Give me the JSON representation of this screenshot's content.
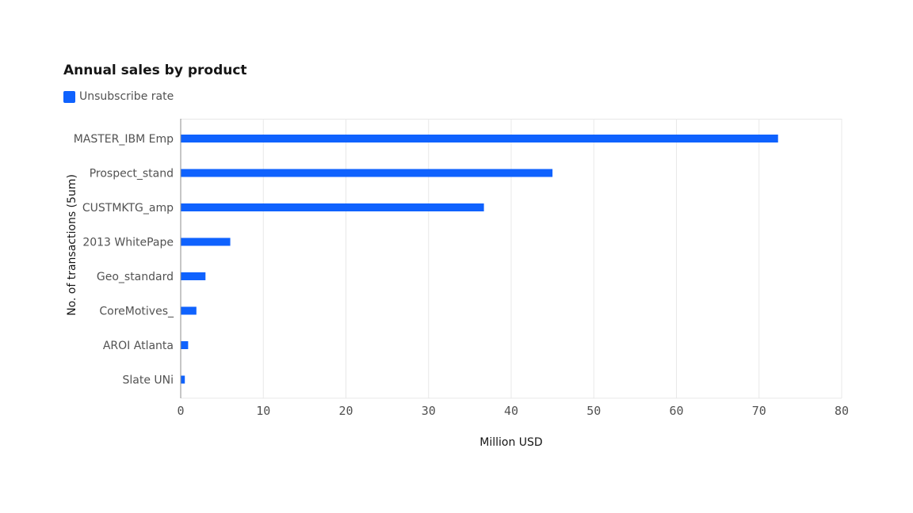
{
  "colors": {
    "bar": "#0f62fe",
    "grid": "#e8e8e8",
    "axis": "#8d8d8d"
  },
  "chart_data": {
    "type": "bar",
    "orientation": "horizontal",
    "title": "Annual sales by product",
    "xlabel": "Million USD",
    "ylabel": "No. of transactions (5um)",
    "categories": [
      "MASTER_IBM Emp",
      "Prospect_stand",
      "CUSTMKTG_amp",
      "2013 WhitePape",
      "Geo_standard",
      "CoreMotives_",
      "AROI Atlanta",
      "Slate UNi"
    ],
    "series": [
      {
        "name": "Unsubscribe rate",
        "values": [
          72.3,
          45.0,
          36.7,
          6.0,
          3.0,
          1.9,
          0.9,
          0.5
        ]
      }
    ],
    "xlim": [
      0,
      80
    ],
    "xticks": [
      0,
      10,
      20,
      30,
      40,
      50,
      60,
      70,
      80
    ],
    "grid": true,
    "legend_position": "top-left"
  }
}
